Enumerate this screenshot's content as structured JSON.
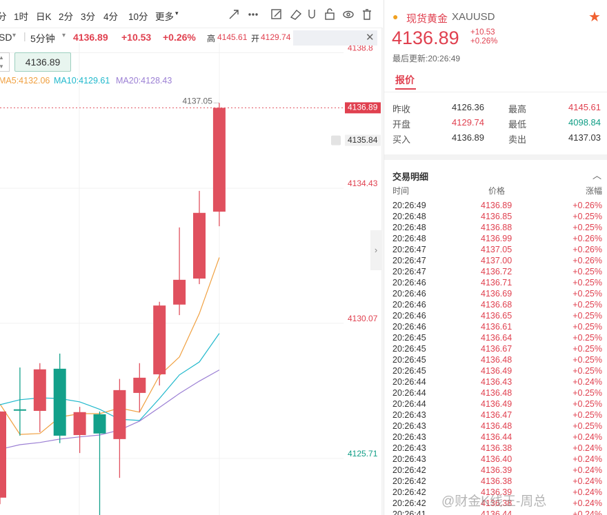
{
  "toolbar": {
    "periods": [
      "分",
      "1时",
      "日K",
      "2分",
      "3分",
      "4分",
      "10分",
      "更多"
    ]
  },
  "symbol_bar": {
    "symbol": "SD",
    "interval": "5分钟",
    "price": "4136.89",
    "change": "+10.53",
    "change_pct": "+0.26%",
    "high_label": "高",
    "high": "4145.61",
    "open_label": "开",
    "open": "4129.74"
  },
  "cursor_price": "4136.89",
  "chart_data": {
    "type": "candlestick",
    "up_color": "#e0505e",
    "down_color": "#13a08a",
    "ylim": [
      4123.75,
      4138.99
    ],
    "yticks": [
      4138.8,
      4134.43,
      4130.07,
      4125.71
    ],
    "current_price": 4136.89,
    "alert_price": 4135.84,
    "high_marker": 4137.05,
    "candles": [
      {
        "open": 4124.31,
        "high": 4127.09,
        "low": 4124.1,
        "close": 4127.09
      },
      {
        "open": 4127.16,
        "high": 4128.51,
        "low": 4126.31,
        "close": 4127.13
      },
      {
        "open": 4127.11,
        "high": 4128.65,
        "low": 4126.42,
        "close": 4128.45
      },
      {
        "open": 4128.47,
        "high": 4128.96,
        "low": 4126.07,
        "close": 4126.31
      },
      {
        "open": 4126.33,
        "high": 4127.24,
        "low": 4125.75,
        "close": 4127.07
      },
      {
        "open": 4127.0,
        "high": 4127.09,
        "low": 4123.75,
        "close": 4126.38
      },
      {
        "open": 4126.2,
        "high": 4128.14,
        "low": 4124.95,
        "close": 4127.78
      },
      {
        "open": 4127.69,
        "high": 4128.65,
        "low": 4127.07,
        "close": 4128.18
      },
      {
        "open": 4128.29,
        "high": 4130.63,
        "low": 4127.93,
        "close": 4130.51
      },
      {
        "open": 4130.54,
        "high": 4133.03,
        "low": 4130.2,
        "close": 4131.34
      },
      {
        "open": 4131.38,
        "high": 4134.21,
        "low": 4131.2,
        "close": 4133.5
      },
      {
        "open": 4133.54,
        "high": 4137.05,
        "low": 4133.07,
        "close": 4136.89
      }
    ],
    "series": [
      {
        "name": "MA5:4132.06",
        "color": "#f0a040",
        "values": [
          4127.33,
          4126.35,
          4126.38,
          4126.91,
          4127.02,
          4127.02,
          4127.2,
          4127.07,
          4128.25,
          4128.85,
          4130.25,
          4132.06
        ]
      },
      {
        "name": "MA10:4129.61",
        "color": "#1fb8cc",
        "values": [
          4127.31,
          4127.47,
          4127.53,
          4127.51,
          4127.4,
          4127.16,
          4126.84,
          4126.8,
          4127.51,
          4128.27,
          4128.69,
          4129.61
        ]
      },
      {
        "name": "MA20:4128.43",
        "color": "#9b7fd4",
        "values": [
          4125.87,
          4126.02,
          4126.09,
          4126.2,
          4126.27,
          4126.33,
          4126.49,
          4126.78,
          4127.22,
          4127.67,
          4128.07,
          4128.43
        ]
      }
    ]
  },
  "quote": {
    "name": "现货黄金",
    "code": "XAUUSD",
    "price": "4136.89",
    "change": "+10.53",
    "change_pct": "+0.26%",
    "updated": "最后更新:20:26:49",
    "tab": "报价",
    "rows": [
      [
        "昨收",
        "4126.36",
        "最高",
        "4145.61"
      ],
      [
        "开盘",
        "4129.74",
        "最低",
        "4098.84"
      ],
      [
        "买入",
        "4136.89",
        "卖出",
        "4137.03"
      ]
    ]
  },
  "trades": {
    "title": "交易明细",
    "columns": [
      "时间",
      "价格",
      "涨幅"
    ],
    "rows": [
      [
        "20:26:49",
        "4136.89",
        "+0.26%"
      ],
      [
        "20:26:48",
        "4136.85",
        "+0.25%"
      ],
      [
        "20:26:48",
        "4136.88",
        "+0.25%"
      ],
      [
        "20:26:48",
        "4136.99",
        "+0.26%"
      ],
      [
        "20:26:47",
        "4137.05",
        "+0.26%"
      ],
      [
        "20:26:47",
        "4137.00",
        "+0.26%"
      ],
      [
        "20:26:47",
        "4136.72",
        "+0.25%"
      ],
      [
        "20:26:46",
        "4136.71",
        "+0.25%"
      ],
      [
        "20:26:46",
        "4136.69",
        "+0.25%"
      ],
      [
        "20:26:46",
        "4136.68",
        "+0.25%"
      ],
      [
        "20:26:46",
        "4136.65",
        "+0.25%"
      ],
      [
        "20:26:46",
        "4136.61",
        "+0.25%"
      ],
      [
        "20:26:45",
        "4136.64",
        "+0.25%"
      ],
      [
        "20:26:45",
        "4136.67",
        "+0.25%"
      ],
      [
        "20:26:45",
        "4136.48",
        "+0.25%"
      ],
      [
        "20:26:45",
        "4136.49",
        "+0.25%"
      ],
      [
        "20:26:44",
        "4136.43",
        "+0.24%"
      ],
      [
        "20:26:44",
        "4136.48",
        "+0.25%"
      ],
      [
        "20:26:44",
        "4136.49",
        "+0.25%"
      ],
      [
        "20:26:43",
        "4136.47",
        "+0.25%"
      ],
      [
        "20:26:43",
        "4136.48",
        "+0.25%"
      ],
      [
        "20:26:43",
        "4136.44",
        "+0.24%"
      ],
      [
        "20:26:43",
        "4136.38",
        "+0.24%"
      ],
      [
        "20:26:43",
        "4136.40",
        "+0.24%"
      ],
      [
        "20:26:42",
        "4136.39",
        "+0.24%"
      ],
      [
        "20:26:42",
        "4136.38",
        "+0.24%"
      ],
      [
        "20:26:42",
        "4136.39",
        "+0.24%"
      ],
      [
        "20:26:42",
        "4136.38",
        "+0.24%"
      ],
      [
        "20:26:41",
        "4136.44",
        "+0.24%"
      ]
    ]
  },
  "watermark": "@财金K线王-周总"
}
